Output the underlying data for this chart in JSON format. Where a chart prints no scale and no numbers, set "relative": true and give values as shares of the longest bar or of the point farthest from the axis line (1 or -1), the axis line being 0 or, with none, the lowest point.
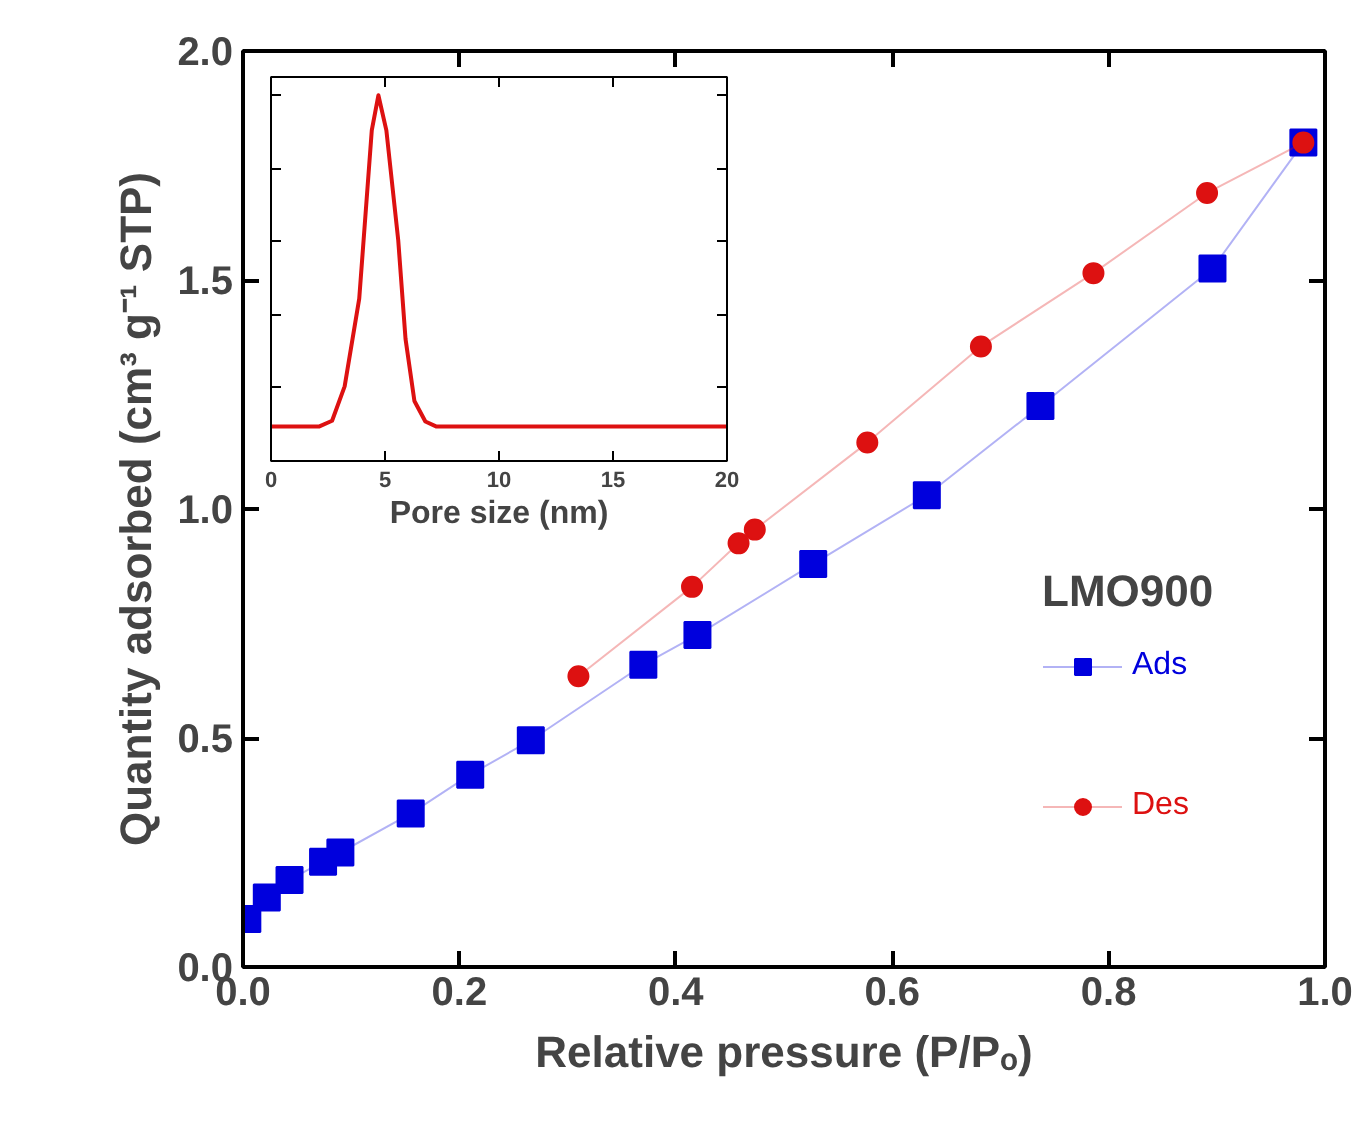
{
  "chart_data": [
    {
      "type": "line",
      "xlabel": "Relative pressure (P/Pₒ)",
      "ylabel": "Quantity adsorbed (cm³ g⁻¹ STP)",
      "legend_title": "LMO900",
      "xlim": [
        0,
        1
      ],
      "ylim": [
        0,
        2
      ],
      "xticks": [
        {
          "value": 0,
          "label": "0.0"
        },
        0.2,
        0.4,
        0.6,
        0.8,
        {
          "value": 1,
          "label": "1.0"
        }
      ],
      "yticks": [
        {
          "value": 0,
          "label": "0.0"
        },
        0.5,
        {
          "value": 1,
          "label": "1.0"
        },
        1.5,
        {
          "value": 2,
          "label": "2.0"
        }
      ],
      "grid": false,
      "legend": "bottom right",
      "series": [
        {
          "name": "Ads",
          "color": "#0000dd",
          "marker": "square",
          "x": [
            0.004,
            0.022,
            0.043,
            0.074,
            0.09,
            0.155,
            0.21,
            0.266,
            0.37,
            0.42,
            0.527,
            0.632,
            0.737,
            0.896,
            0.98
          ],
          "values": [
            0.105,
            0.152,
            0.19,
            0.23,
            0.25,
            0.335,
            0.42,
            0.495,
            0.66,
            0.725,
            0.88,
            1.03,
            1.225,
            1.525,
            1.8
          ]
        },
        {
          "name": "Des",
          "color": "#dd1111",
          "marker": "circle",
          "x": [
            0.31,
            0.415,
            0.458,
            0.473,
            0.577,
            0.682,
            0.786,
            0.891,
            0.98
          ],
          "values": [
            0.635,
            0.83,
            0.925,
            0.955,
            1.145,
            1.355,
            1.515,
            1.69,
            1.8
          ]
        }
      ]
    },
    {
      "type": "line",
      "relative": true,
      "xlabel": "Pore size (nm)",
      "xlim": [
        0,
        20
      ],
      "xticks": [
        0,
        5,
        10,
        15,
        20
      ],
      "tick_labels": "x",
      "grid": false,
      "marker": "none",
      "series": [
        {
          "color": "#dd1111",
          "x": [
            0,
            2.1,
            2.68,
            3.23,
            3.87,
            4.42,
            4.71,
            5.06,
            5.58,
            5.9,
            6.29,
            6.77,
            7.26,
            20
          ],
          "values": [
            0.094,
            0.094,
            0.11,
            0.204,
            0.444,
            0.904,
            1,
            0.904,
            0.604,
            0.334,
            0.164,
            0.108,
            0.094,
            0.094
          ]
        }
      ]
    }
  ]
}
